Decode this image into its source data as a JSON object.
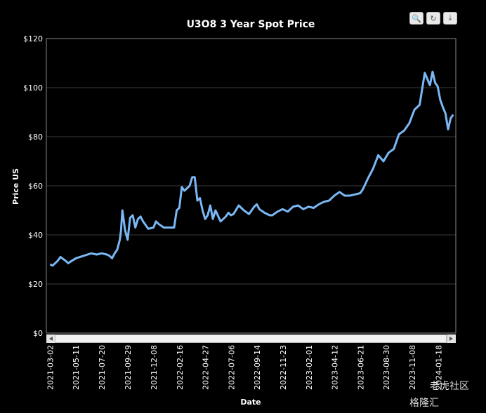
{
  "toolbar": {
    "zoom_icon": "zoom-icon",
    "reset_icon": "reset-icon",
    "download_icon": "download-icon"
  },
  "watermark": {
    "line1": "老虎社区",
    "line2": "格隆汇"
  },
  "colors": {
    "background": "#000000",
    "line": "#7ab8f5",
    "grid": "#3a3a3a",
    "axis": "#ffffff"
  },
  "chart_data": {
    "type": "line",
    "title": "U3O8 3 Year Spot Price",
    "xlabel": "Date",
    "ylabel": "Price US",
    "ylim": [
      0,
      120
    ],
    "yticks": [
      "$0",
      "$20",
      "$40",
      "$60",
      "$80",
      "$100",
      "$120"
    ],
    "xticks": [
      "2021-03-02",
      "2021-05-11",
      "2021-07-20",
      "2021-09-29",
      "2021-12-08",
      "2022-02-16",
      "2022-04-27",
      "2022-07-06",
      "2022-09-14",
      "2022-11-23",
      "2023-02-01",
      "2023-04-12",
      "2023-06-21",
      "2023-08-30",
      "2023-11-08",
      "2024-01-18"
    ],
    "grid": true,
    "legend": "none",
    "series": [
      {
        "x": [
          "2021-03-02",
          "2021-03-09",
          "2021-03-23",
          "2021-03-30",
          "2021-04-13",
          "2021-04-20",
          "2021-05-11",
          "2021-06-01",
          "2021-06-22",
          "2021-07-06",
          "2021-07-20",
          "2021-08-03",
          "2021-08-10",
          "2021-08-17",
          "2021-08-24",
          "2021-08-31",
          "2021-09-07",
          "2021-09-10",
          "2021-09-14",
          "2021-09-21",
          "2021-09-28",
          "2021-10-05",
          "2021-10-12",
          "2021-10-19",
          "2021-10-26",
          "2021-11-02",
          "2021-11-09",
          "2021-11-16",
          "2021-11-23",
          "2021-12-07",
          "2021-12-14",
          "2021-12-21",
          "2022-01-04",
          "2022-01-18",
          "2022-02-01",
          "2022-02-08",
          "2022-02-15",
          "2022-02-22",
          "2022-03-01",
          "2022-03-08",
          "2022-03-15",
          "2022-03-22",
          "2022-03-29",
          "2022-04-05",
          "2022-04-12",
          "2022-04-19",
          "2022-04-26",
          "2022-05-03",
          "2022-05-10",
          "2022-05-17",
          "2022-05-24",
          "2022-06-07",
          "2022-06-21",
          "2022-06-28",
          "2022-07-05",
          "2022-07-12",
          "2022-07-26",
          "2022-08-09",
          "2022-08-23",
          "2022-09-06",
          "2022-09-13",
          "2022-09-20",
          "2022-10-04",
          "2022-10-18",
          "2022-10-25",
          "2022-11-08",
          "2022-11-22",
          "2022-12-06",
          "2022-12-20",
          "2023-01-03",
          "2023-01-17",
          "2023-01-31",
          "2023-02-14",
          "2023-02-28",
          "2023-03-14",
          "2023-03-28",
          "2023-04-11",
          "2023-04-25",
          "2023-05-09",
          "2023-05-23",
          "2023-06-06",
          "2023-06-20",
          "2023-06-27",
          "2023-07-11",
          "2023-07-25",
          "2023-08-08",
          "2023-08-22",
          "2023-09-05",
          "2023-09-19",
          "2023-10-03",
          "2023-10-17",
          "2023-10-31",
          "2023-11-14",
          "2023-11-28",
          "2023-12-12",
          "2023-12-26",
          "2024-01-02",
          "2024-01-09",
          "2024-01-16",
          "2024-01-23",
          "2024-01-30",
          "2024-02-06",
          "2024-02-13",
          "2024-02-20",
          "2024-02-27"
        ],
        "values": [
          28.0,
          27.5,
          29.5,
          31.0,
          29.5,
          28.5,
          30.5,
          31.5,
          32.5,
          32.0,
          32.5,
          32.0,
          31.5,
          30.5,
          32.5,
          34.0,
          38.0,
          41.5,
          50.0,
          42.0,
          38.0,
          47.0,
          48.0,
          43.0,
          46.5,
          47.5,
          45.5,
          44.0,
          42.5,
          43.0,
          45.5,
          44.5,
          43.0,
          43.0,
          43.0,
          50.0,
          51.0,
          59.5,
          58.0,
          59.0,
          60.0,
          63.5,
          63.5,
          54.0,
          55.0,
          50.0,
          46.5,
          48.0,
          52.0,
          46.5,
          50.0,
          45.5,
          47.5,
          49.0,
          48.0,
          48.5,
          52.0,
          50.0,
          48.5,
          51.5,
          52.5,
          50.5,
          49.0,
          48.0,
          48.0,
          49.5,
          50.5,
          49.5,
          51.5,
          52.0,
          50.5,
          51.5,
          51.0,
          52.5,
          53.5,
          54.0,
          56.0,
          57.5,
          56.0,
          56.0,
          56.5,
          57.0,
          58.5,
          63.0,
          67.0,
          72.5,
          70.0,
          73.5,
          75.0,
          81.0,
          82.5,
          85.5,
          91.0,
          93.0,
          106.0,
          101.0,
          106.5,
          102.0,
          100.5,
          95.0,
          92.0,
          89.5,
          83.0,
          87.5,
          89.0
        ]
      }
    ]
  }
}
